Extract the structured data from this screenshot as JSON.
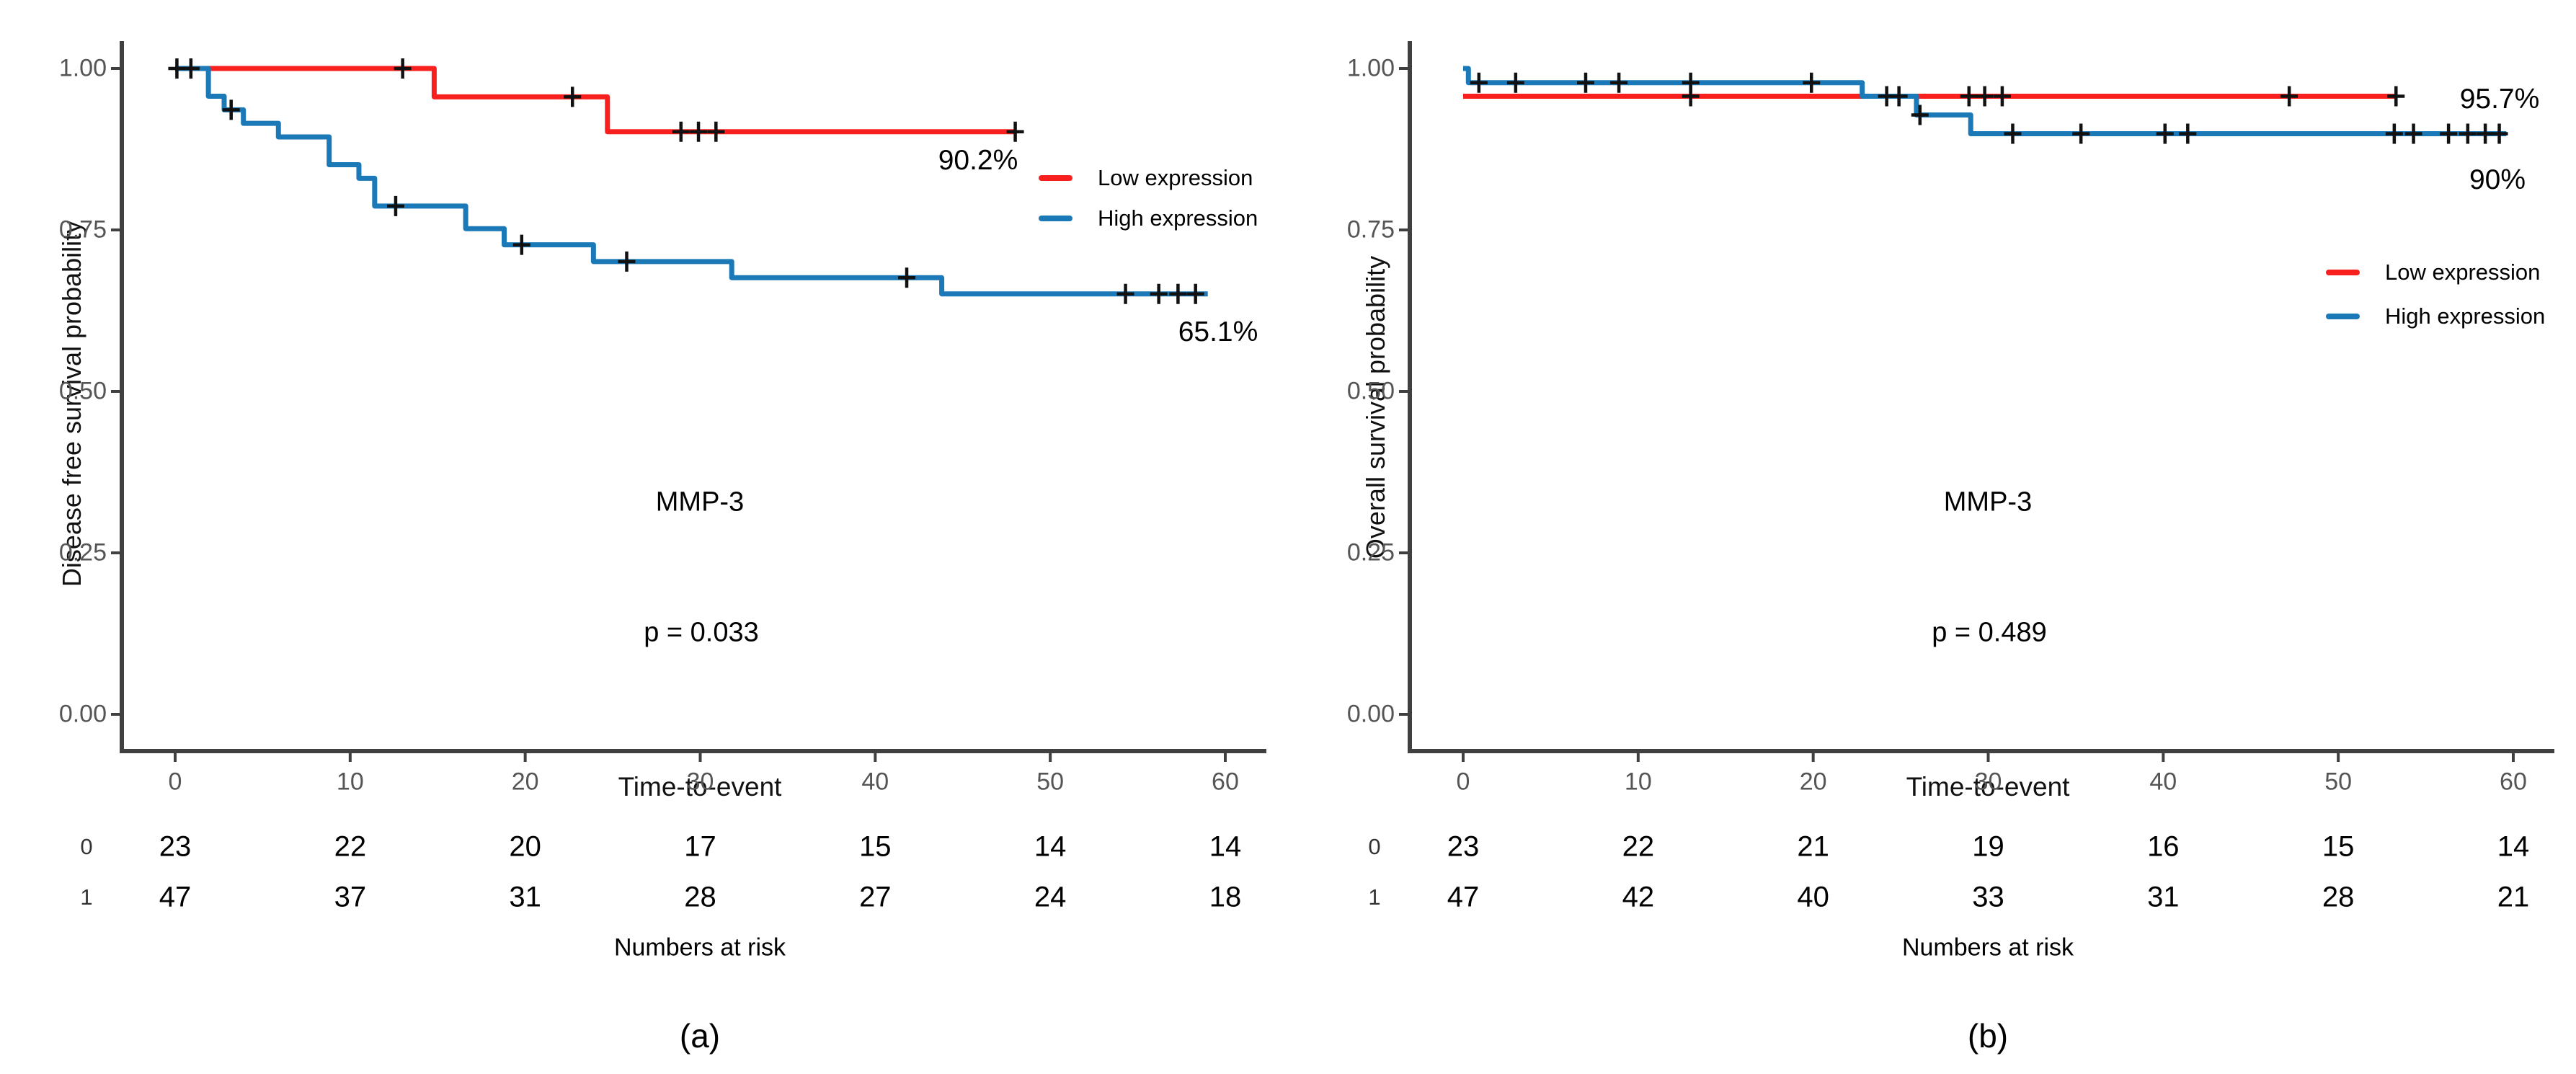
{
  "legend": {
    "items": [
      {
        "label": "Low expression",
        "color": "#f8201f"
      },
      {
        "label": "High expression",
        "color": "#1b79b7"
      }
    ]
  },
  "chart_data": [
    {
      "type": "line",
      "subtype": "kaplan-meier-step",
      "title": "MMP-3",
      "p_value_text": "p = 0.033",
      "caption": "(a)",
      "xlabel": "Time-to-event",
      "ylabel": "Disease free survival probability",
      "xlim": [
        0,
        60
      ],
      "ylim": [
        0,
        1
      ],
      "xticks": [
        0,
        10,
        20,
        30,
        40,
        50,
        60
      ],
      "ytick_labels": [
        "1.00",
        "0.75",
        "0.50",
        "0.25",
        "0.00"
      ],
      "grid": "off",
      "legend_position": "right-inside",
      "series": [
        {
          "name": "Low expression",
          "color": "#f8201f",
          "final_label": "90.2%",
          "start_p": 1.0,
          "drops": [
            [
              14.8,
              0.956
            ],
            [
              24.7,
              0.902
            ]
          ],
          "end_t": 48,
          "censors": [
            [
              13,
              1.0
            ],
            [
              22.7,
              0.956
            ],
            [
              28.9,
              0.902
            ],
            [
              29.9,
              0.902
            ],
            [
              30.9,
              0.902
            ],
            [
              48,
              0.902
            ]
          ]
        },
        {
          "name": "High expression",
          "color": "#1b79b7",
          "final_label": "65.1%",
          "start_p": 1.0,
          "drops": [
            [
              1.9,
              0.957
            ],
            [
              2.8,
              0.936
            ],
            [
              3.9,
              0.915
            ],
            [
              5.9,
              0.894
            ],
            [
              8.8,
              0.851
            ],
            [
              10.5,
              0.83
            ],
            [
              11.4,
              0.787
            ],
            [
              16.6,
              0.752
            ],
            [
              18.8,
              0.727
            ],
            [
              23.9,
              0.701
            ],
            [
              31.8,
              0.676
            ],
            [
              43.8,
              0.651
            ]
          ],
          "end_t": 59,
          "censors": [
            [
              0.1,
              1.0
            ],
            [
              0.9,
              1.0
            ],
            [
              3.2,
              0.936
            ],
            [
              12.6,
              0.787
            ],
            [
              19.8,
              0.727
            ],
            [
              25.8,
              0.701
            ],
            [
              41.8,
              0.676
            ],
            [
              54.3,
              0.651
            ],
            [
              56.2,
              0.651
            ],
            [
              57.3,
              0.651
            ],
            [
              58.3,
              0.651
            ]
          ]
        }
      ],
      "risk_table": {
        "title": "Numbers at risk",
        "time_points": [
          0,
          10,
          20,
          30,
          40,
          50,
          60
        ],
        "rows": [
          {
            "label": "0",
            "group": "Low expression",
            "values": [
              23,
              22,
              20,
              17,
              15,
              14,
              14
            ]
          },
          {
            "label": "1",
            "group": "High expression",
            "values": [
              47,
              37,
              31,
              28,
              27,
              24,
              18
            ]
          }
        ]
      }
    },
    {
      "type": "line",
      "subtype": "kaplan-meier-step",
      "title": "MMP-3",
      "p_value_text": "p = 0.489",
      "caption": "(b)",
      "xlabel": "Time-to-event",
      "ylabel": "Overall survival probability",
      "xlim": [
        0,
        60
      ],
      "ylim": [
        0,
        1
      ],
      "xticks": [
        0,
        10,
        20,
        30,
        40,
        50,
        60
      ],
      "ytick_labels": [
        "1.00",
        "0.75",
        "0.50",
        "0.25",
        "0.00"
      ],
      "grid": "off",
      "legend_position": "right-inside",
      "series": [
        {
          "name": "Low expression",
          "color": "#f8201f",
          "final_label": "95.7%",
          "start_p": 0.957,
          "drops": [],
          "end_t": 53.3,
          "censors": [
            [
              13,
              0.957
            ],
            [
              24.9,
              0.957
            ],
            [
              28.9,
              0.957
            ],
            [
              29.8,
              0.957
            ],
            [
              30.8,
              0.957
            ],
            [
              47.2,
              0.957
            ],
            [
              53.3,
              0.957
            ]
          ]
        },
        {
          "name": "High expression",
          "color": "#1b79b7",
          "final_label": "90%",
          "start_p": 1.0,
          "drops": [
            [
              0.3,
              0.978
            ],
            [
              22.8,
              0.957
            ],
            [
              25.9,
              0.928
            ],
            [
              29.0,
              0.899
            ]
          ],
          "end_t": 59.6,
          "censors": [
            [
              0.9,
              0.978
            ],
            [
              3.0,
              0.978
            ],
            [
              7.0,
              0.978
            ],
            [
              8.9,
              0.978
            ],
            [
              13.0,
              0.978
            ],
            [
              19.9,
              0.978
            ],
            [
              24.2,
              0.957
            ],
            [
              26.1,
              0.928
            ],
            [
              31.4,
              0.899
            ],
            [
              35.3,
              0.899
            ],
            [
              40.1,
              0.899
            ],
            [
              41.4,
              0.899
            ],
            [
              53.2,
              0.899
            ],
            [
              54.3,
              0.899
            ],
            [
              56.3,
              0.899
            ],
            [
              57.4,
              0.899
            ],
            [
              58.4,
              0.899
            ],
            [
              59.2,
              0.899
            ]
          ]
        }
      ],
      "risk_table": {
        "title": "Numbers at risk",
        "time_points": [
          0,
          10,
          20,
          30,
          40,
          50,
          60
        ],
        "rows": [
          {
            "label": "0",
            "group": "Low expression",
            "values": [
              23,
              22,
              21,
              19,
              16,
              15,
              14
            ]
          },
          {
            "label": "1",
            "group": "High expression",
            "values": [
              47,
              42,
              40,
              33,
              31,
              28,
              21
            ]
          }
        ]
      }
    }
  ]
}
